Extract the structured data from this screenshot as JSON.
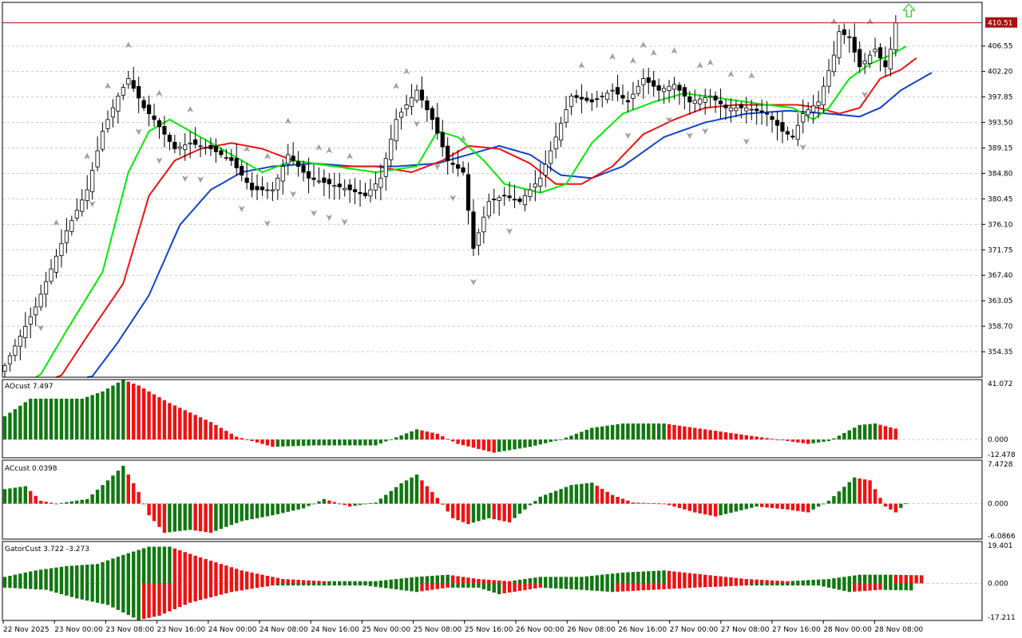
{
  "chart_data": {
    "type": "candlestick",
    "symbol_timeframe": "",
    "colors": {
      "candle_up": "#ffffff",
      "candle_down": "#000000",
      "candle_outline": "#000000",
      "ma_fast": "#00ee00",
      "ma_mid": "#ee1111",
      "ma_slow": "#1144cc",
      "bar_green": "#117711",
      "bar_red": "#ee1111",
      "current_price_line": "#aa1111",
      "grid": "#c8c8c8",
      "fractal": "#a0a0a0",
      "signal_arrow": "#33cc33"
    },
    "price_axis": {
      "min": 350.0,
      "max": 414.0,
      "ticks": [
        "406.55",
        "402.20",
        "397.85",
        "393.50",
        "389.15",
        "384.80",
        "380.45",
        "376.10",
        "371.75",
        "367.40",
        "363.05",
        "358.70",
        "354.35"
      ],
      "current_price": "410.51"
    },
    "time_axis": {
      "labels": [
        "22 Nov 2025",
        "23 Nov 00:00",
        "23 Nov 08:00",
        "23 Nov 16:00",
        "24 Nov 00:00",
        "24 Nov 08:00",
        "24 Nov 16:00",
        "25 Nov 00:00",
        "25 Nov 08:00",
        "25 Nov 16:00",
        "26 Nov 00:00",
        "26 Nov 08:00",
        "26 Nov 16:00",
        "27 Nov 00:00",
        "27 Nov 08:00",
        "27 Nov 16:00",
        "28 Nov 00:00",
        "28 Nov 08:00"
      ]
    },
    "candle_anchors": [
      {
        "i": 0,
        "close": 352
      },
      {
        "i": 6,
        "close": 362
      },
      {
        "i": 12,
        "close": 375
      },
      {
        "i": 16,
        "close": 382
      },
      {
        "i": 19,
        "close": 392
      },
      {
        "i": 22,
        "close": 398
      },
      {
        "i": 24,
        "close": 401
      },
      {
        "i": 27,
        "close": 396
      },
      {
        "i": 29,
        "close": 394
      },
      {
        "i": 33,
        "close": 389
      },
      {
        "i": 36,
        "close": 390
      },
      {
        "i": 40,
        "close": 389
      },
      {
        "i": 44,
        "close": 387
      },
      {
        "i": 48,
        "close": 382
      },
      {
        "i": 52,
        "close": 382
      },
      {
        "i": 55,
        "close": 388
      },
      {
        "i": 59,
        "close": 384
      },
      {
        "i": 63,
        "close": 383
      },
      {
        "i": 67,
        "close": 382
      },
      {
        "i": 70,
        "close": 381
      },
      {
        "i": 73,
        "close": 384
      },
      {
        "i": 76,
        "close": 394
      },
      {
        "i": 80,
        "close": 399
      },
      {
        "i": 83,
        "close": 394
      },
      {
        "i": 86,
        "close": 387
      },
      {
        "i": 89,
        "close": 385
      },
      {
        "i": 91,
        "close": 372
      },
      {
        "i": 94,
        "close": 380
      },
      {
        "i": 97,
        "close": 381
      },
      {
        "i": 100,
        "close": 380
      },
      {
        "i": 104,
        "close": 384
      },
      {
        "i": 107,
        "close": 391
      },
      {
        "i": 110,
        "close": 398
      },
      {
        "i": 114,
        "close": 397
      },
      {
        "i": 118,
        "close": 399
      },
      {
        "i": 121,
        "close": 397
      },
      {
        "i": 124,
        "close": 401
      },
      {
        "i": 127,
        "close": 399
      },
      {
        "i": 130,
        "close": 400
      },
      {
        "i": 133,
        "close": 397
      },
      {
        "i": 137,
        "close": 398
      },
      {
        "i": 140,
        "close": 396
      },
      {
        "i": 144,
        "close": 396
      },
      {
        "i": 148,
        "close": 395
      },
      {
        "i": 151,
        "close": 392
      },
      {
        "i": 153,
        "close": 391
      },
      {
        "i": 155,
        "close": 395
      },
      {
        "i": 158,
        "close": 397
      },
      {
        "i": 161,
        "close": 405
      },
      {
        "i": 162,
        "close": 409
      },
      {
        "i": 164,
        "close": 408
      },
      {
        "i": 166,
        "close": 403
      },
      {
        "i": 169,
        "close": 406
      },
      {
        "i": 171,
        "close": 403
      },
      {
        "i": 172,
        "close": 406
      },
      {
        "i": 173,
        "close": 410.51
      }
    ],
    "ma_fast_anchors": [
      {
        "i": 6,
        "v": 349
      },
      {
        "i": 12,
        "v": 358
      },
      {
        "i": 19,
        "v": 368
      },
      {
        "i": 24,
        "v": 385
      },
      {
        "i": 28,
        "v": 392
      },
      {
        "i": 32,
        "v": 394
      },
      {
        "i": 38,
        "v": 391
      },
      {
        "i": 44,
        "v": 388
      },
      {
        "i": 50,
        "v": 385
      },
      {
        "i": 56,
        "v": 387
      },
      {
        "i": 64,
        "v": 386
      },
      {
        "i": 72,
        "v": 385
      },
      {
        "i": 80,
        "v": 386
      },
      {
        "i": 84,
        "v": 392
      },
      {
        "i": 88,
        "v": 391
      },
      {
        "i": 93,
        "v": 387
      },
      {
        "i": 97,
        "v": 383
      },
      {
        "i": 104,
        "v": 381.5
      },
      {
        "i": 109,
        "v": 383
      },
      {
        "i": 114,
        "v": 390
      },
      {
        "i": 120,
        "v": 395
      },
      {
        "i": 126,
        "v": 397
      },
      {
        "i": 132,
        "v": 398.5
      },
      {
        "i": 140,
        "v": 397.5
      },
      {
        "i": 148,
        "v": 396.5
      },
      {
        "i": 153,
        "v": 396
      },
      {
        "i": 157,
        "v": 394
      },
      {
        "i": 160,
        "v": 396
      },
      {
        "i": 164,
        "v": 401
      },
      {
        "i": 168,
        "v": 403.5
      },
      {
        "i": 172,
        "v": 405
      },
      {
        "i": 175,
        "v": 406.5
      }
    ],
    "ma_mid_anchors": [
      {
        "i": 10,
        "v": 349
      },
      {
        "i": 16,
        "v": 357
      },
      {
        "i": 23,
        "v": 366
      },
      {
        "i": 28,
        "v": 381
      },
      {
        "i": 33,
        "v": 387
      },
      {
        "i": 38,
        "v": 389
      },
      {
        "i": 44,
        "v": 390
      },
      {
        "i": 50,
        "v": 389
      },
      {
        "i": 56,
        "v": 387
      },
      {
        "i": 64,
        "v": 386
      },
      {
        "i": 72,
        "v": 386
      },
      {
        "i": 79,
        "v": 385
      },
      {
        "i": 85,
        "v": 387
      },
      {
        "i": 90,
        "v": 389.5
      },
      {
        "i": 96,
        "v": 389
      },
      {
        "i": 102,
        "v": 386.5
      },
      {
        "i": 107,
        "v": 383
      },
      {
        "i": 112,
        "v": 383
      },
      {
        "i": 118,
        "v": 386
      },
      {
        "i": 124,
        "v": 391.5
      },
      {
        "i": 130,
        "v": 394
      },
      {
        "i": 136,
        "v": 396
      },
      {
        "i": 142,
        "v": 396.5
      },
      {
        "i": 148,
        "v": 396.5
      },
      {
        "i": 154,
        "v": 396.5
      },
      {
        "i": 158,
        "v": 396
      },
      {
        "i": 162,
        "v": 395
      },
      {
        "i": 166,
        "v": 396
      },
      {
        "i": 170,
        "v": 401
      },
      {
        "i": 174,
        "v": 402.5
      },
      {
        "i": 177,
        "v": 404.5
      }
    ],
    "ma_slow_anchors": [
      {
        "i": 16,
        "v": 349
      },
      {
        "i": 22,
        "v": 356
      },
      {
        "i": 28,
        "v": 364
      },
      {
        "i": 34,
        "v": 376
      },
      {
        "i": 40,
        "v": 382
      },
      {
        "i": 46,
        "v": 385
      },
      {
        "i": 52,
        "v": 386
      },
      {
        "i": 60,
        "v": 386.5
      },
      {
        "i": 68,
        "v": 386
      },
      {
        "i": 76,
        "v": 386
      },
      {
        "i": 84,
        "v": 386.5
      },
      {
        "i": 90,
        "v": 388
      },
      {
        "i": 96,
        "v": 389.5
      },
      {
        "i": 102,
        "v": 388
      },
      {
        "i": 108,
        "v": 384.5
      },
      {
        "i": 114,
        "v": 384
      },
      {
        "i": 120,
        "v": 386
      },
      {
        "i": 128,
        "v": 391
      },
      {
        "i": 136,
        "v": 393.5
      },
      {
        "i": 144,
        "v": 395
      },
      {
        "i": 152,
        "v": 395.5
      },
      {
        "i": 160,
        "v": 395
      },
      {
        "i": 166,
        "v": 394.5
      },
      {
        "i": 170,
        "v": 396
      },
      {
        "i": 174,
        "v": 399
      },
      {
        "i": 180,
        "v": 402
      }
    ],
    "up_fractals": [
      10,
      16,
      20,
      24,
      30,
      36,
      47,
      51,
      55,
      61,
      63,
      67,
      76,
      78,
      89,
      112,
      118,
      122,
      124,
      126,
      130,
      135,
      137,
      141,
      145,
      161,
      168
    ],
    "down_fractals": [
      7,
      17,
      26,
      30,
      35,
      38,
      46,
      51,
      56,
      60,
      63,
      66,
      80,
      84,
      87,
      91,
      98,
      121,
      129,
      133,
      136,
      144,
      155,
      167
    ],
    "signal_arrow": {
      "type": "buy",
      "i": 174
    },
    "ao": {
      "label": "AOcust 7.497",
      "axis": {
        "max": 41.072,
        "min": -12.478,
        "ticks": [
          "41.072",
          "0.000",
          "-12.478"
        ]
      },
      "anchors": [
        {
          "i": 0,
          "v": 16
        },
        {
          "i": 5,
          "v": 28
        },
        {
          "i": 15,
          "v": 28
        },
        {
          "i": 19,
          "v": 33
        },
        {
          "i": 23,
          "v": 41
        },
        {
          "i": 26,
          "v": 37
        },
        {
          "i": 32,
          "v": 25
        },
        {
          "i": 40,
          "v": 12
        },
        {
          "i": 45,
          "v": 2
        },
        {
          "i": 52,
          "v": -5
        },
        {
          "i": 60,
          "v": -4
        },
        {
          "i": 72,
          "v": -4
        },
        {
          "i": 80,
          "v": 7
        },
        {
          "i": 84,
          "v": 4
        },
        {
          "i": 88,
          "v": -3
        },
        {
          "i": 95,
          "v": -9
        },
        {
          "i": 102,
          "v": -5
        },
        {
          "i": 108,
          "v": 0
        },
        {
          "i": 114,
          "v": 8
        },
        {
          "i": 120,
          "v": 11
        },
        {
          "i": 128,
          "v": 11
        },
        {
          "i": 134,
          "v": 8
        },
        {
          "i": 142,
          "v": 4
        },
        {
          "i": 150,
          "v": 0
        },
        {
          "i": 156,
          "v": -3
        },
        {
          "i": 160,
          "v": -1
        },
        {
          "i": 166,
          "v": 10
        },
        {
          "i": 169,
          "v": 11
        },
        {
          "i": 173,
          "v": 7.497
        }
      ]
    },
    "ac": {
      "label": "ACcust 0.0398",
      "axis": {
        "max": 7.4728,
        "min": -6.0866,
        "ticks": [
          "7.4728",
          "0.000",
          "-6.0866"
        ]
      },
      "anchors": [
        {
          "i": 0,
          "v": 2.5
        },
        {
          "i": 4,
          "v": 3.0
        },
        {
          "i": 7,
          "v": 0.5
        },
        {
          "i": 10,
          "v": 0.0
        },
        {
          "i": 16,
          "v": 0.8
        },
        {
          "i": 20,
          "v": 4.0
        },
        {
          "i": 23,
          "v": 6.5
        },
        {
          "i": 26,
          "v": 2.0
        },
        {
          "i": 28,
          "v": -2.0
        },
        {
          "i": 31,
          "v": -5.0
        },
        {
          "i": 36,
          "v": -4.5
        },
        {
          "i": 40,
          "v": -5.0
        },
        {
          "i": 46,
          "v": -3.0
        },
        {
          "i": 52,
          "v": -2.0
        },
        {
          "i": 58,
          "v": -0.8
        },
        {
          "i": 62,
          "v": 0.8
        },
        {
          "i": 67,
          "v": -0.5
        },
        {
          "i": 72,
          "v": 0.2
        },
        {
          "i": 77,
          "v": 3.5
        },
        {
          "i": 80,
          "v": 5.0
        },
        {
          "i": 84,
          "v": 1.0
        },
        {
          "i": 87,
          "v": -2.5
        },
        {
          "i": 90,
          "v": -3.5
        },
        {
          "i": 94,
          "v": -2.5
        },
        {
          "i": 98,
          "v": -3.2
        },
        {
          "i": 101,
          "v": -1.0
        },
        {
          "i": 104,
          "v": 1.2
        },
        {
          "i": 110,
          "v": 3.2
        },
        {
          "i": 114,
          "v": 3.6
        },
        {
          "i": 118,
          "v": 1.5
        },
        {
          "i": 122,
          "v": 0.2
        },
        {
          "i": 128,
          "v": 0.0
        },
        {
          "i": 134,
          "v": -1.5
        },
        {
          "i": 138,
          "v": -2.2
        },
        {
          "i": 146,
          "v": -0.5
        },
        {
          "i": 152,
          "v": -1.0
        },
        {
          "i": 156,
          "v": -1.5
        },
        {
          "i": 160,
          "v": 0.5
        },
        {
          "i": 165,
          "v": 4.5
        },
        {
          "i": 168,
          "v": 4.0
        },
        {
          "i": 171,
          "v": -0.5
        },
        {
          "i": 173,
          "v": -1.5
        },
        {
          "i": 175,
          "v": 0.0398
        }
      ]
    },
    "gator": {
      "label": "GatorCust 3.722 -3.273",
      "axis": {
        "max": 19.401,
        "min": -17.211,
        "ticks": [
          "19.401",
          "0.000",
          "-17.211"
        ]
      },
      "upper_anchors": [
        {
          "i": 0,
          "v": 3
        },
        {
          "i": 6,
          "v": 6
        },
        {
          "i": 12,
          "v": 8
        },
        {
          "i": 18,
          "v": 9
        },
        {
          "i": 24,
          "v": 14
        },
        {
          "i": 28,
          "v": 17
        },
        {
          "i": 32,
          "v": 17
        },
        {
          "i": 38,
          "v": 12
        },
        {
          "i": 46,
          "v": 6
        },
        {
          "i": 54,
          "v": 2
        },
        {
          "i": 62,
          "v": 1
        },
        {
          "i": 72,
          "v": 1
        },
        {
          "i": 80,
          "v": 3
        },
        {
          "i": 86,
          "v": 4
        },
        {
          "i": 92,
          "v": 2
        },
        {
          "i": 98,
          "v": 1
        },
        {
          "i": 104,
          "v": 3
        },
        {
          "i": 112,
          "v": 3
        },
        {
          "i": 120,
          "v": 5
        },
        {
          "i": 128,
          "v": 6
        },
        {
          "i": 136,
          "v": 4
        },
        {
          "i": 144,
          "v": 2
        },
        {
          "i": 152,
          "v": 1
        },
        {
          "i": 160,
          "v": 2
        },
        {
          "i": 166,
          "v": 4
        },
        {
          "i": 172,
          "v": 4
        },
        {
          "i": 178,
          "v": 3.722
        }
      ],
      "lower_anchors": [
        {
          "i": 0,
          "v": -2
        },
        {
          "i": 8,
          "v": -3
        },
        {
          "i": 14,
          "v": -7
        },
        {
          "i": 20,
          "v": -10
        },
        {
          "i": 26,
          "v": -17
        },
        {
          "i": 30,
          "v": -15
        },
        {
          "i": 36,
          "v": -9
        },
        {
          "i": 44,
          "v": -4
        },
        {
          "i": 52,
          "v": -1
        },
        {
          "i": 60,
          "v": -1
        },
        {
          "i": 70,
          "v": -1
        },
        {
          "i": 80,
          "v": -4
        },
        {
          "i": 86,
          "v": -2
        },
        {
          "i": 92,
          "v": -2
        },
        {
          "i": 96,
          "v": -5
        },
        {
          "i": 104,
          "v": -2
        },
        {
          "i": 112,
          "v": -3
        },
        {
          "i": 118,
          "v": -4
        },
        {
          "i": 126,
          "v": -3
        },
        {
          "i": 134,
          "v": -2
        },
        {
          "i": 144,
          "v": -1
        },
        {
          "i": 152,
          "v": -1
        },
        {
          "i": 158,
          "v": -1
        },
        {
          "i": 164,
          "v": -4
        },
        {
          "i": 170,
          "v": -3
        },
        {
          "i": 176,
          "v": -3.273
        }
      ]
    }
  }
}
